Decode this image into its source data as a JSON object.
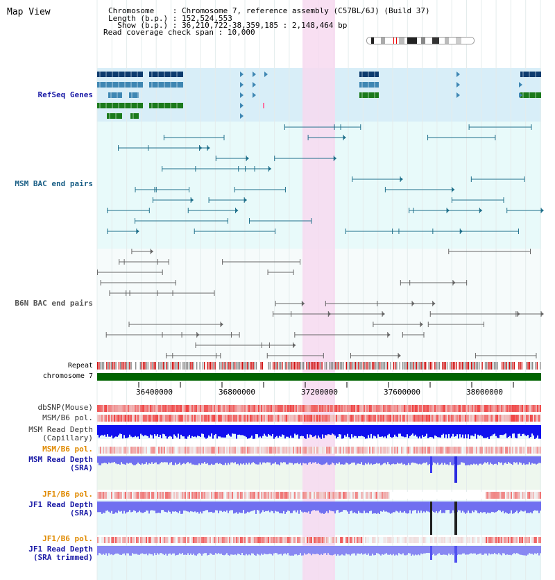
{
  "title": "Map View",
  "header": {
    "chromosome_key": "Chromosome",
    "chromosome_val": "Chromosome 7, reference assembly (C57BL/6J) (Build 37)",
    "length_key": "Length (b.p.)",
    "length_val": "152,524,553",
    "show_key": "Show (b.p.)",
    "show_val": "36,210,722-38,359,185 : 2,148,464 bp",
    "coverage_key": "Read coverage check span",
    "coverage_val": "10,000"
  },
  "tracks": {
    "refseq": "RefSeq Genes",
    "msm_bac": "MSM BAC end pairs",
    "b6n_bac": "B6N BAC end pairs",
    "repeat": "Repeat",
    "chromosome": "chromosome 7",
    "dbsnp": "dbSNP(Mouse)",
    "msm_b6_pol": "MSM/B6 pol.",
    "msm_depth_cap_1": "MSM Read Depth",
    "msm_depth_cap_2": "(Capillary)",
    "msm_b6_pol_2": "MSM/B6 pol.",
    "msm_depth_sra_1": "MSM Read Depth",
    "msm_depth_sra_2": "(SRA)",
    "jf1_b6_pol": "JF1/B6 pol.",
    "jf1_depth_sra_1": "JF1 Read Depth",
    "jf1_depth_sra_2": "(SRA)",
    "jf1_b6_pol_2": "JF1/B6 pol.",
    "jf1_depth_trim_1": "JF1 Read Depth",
    "jf1_depth_trim_2": "(SRA trimmed)"
  },
  "axis_ticks": [
    "36400000",
    "36800000",
    "37200000",
    "37600000",
    "38000000"
  ],
  "colors": {
    "refseq_bg": "#d8eef8",
    "bac_bg": "#e8fafa",
    "highlight": "#f7d9f0",
    "chromosome_bar": "#006400",
    "gene_dark": "#0c3b6e",
    "gene_mid": "#3f87b3",
    "gene_green": "#1b7a1b",
    "msm_line": "#1e6f8a",
    "b6n_line": "#666666",
    "depth_blue": "#1010ee",
    "depth_light": "#7070f0",
    "snp_red": "#e83030",
    "orange_label": "#e08a00"
  }
}
